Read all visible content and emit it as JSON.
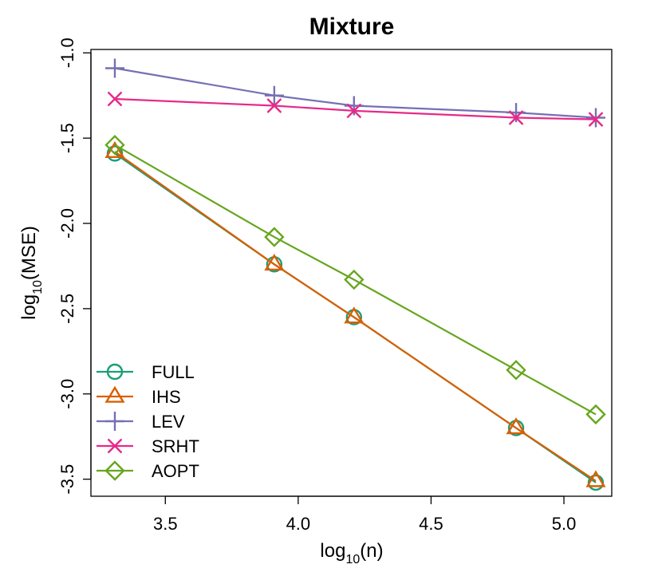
{
  "chart_data": {
    "type": "line",
    "title": "Mixture",
    "xlabel": {
      "base": "log",
      "sub": "10",
      "rest": "(n)"
    },
    "ylabel": {
      "base": "log",
      "sub": "10",
      "rest": "(MSE)"
    },
    "xlim": [
      3.22,
      5.18
    ],
    "ylim": [
      -3.6,
      -0.98
    ],
    "xticks": [
      3.5,
      4.0,
      4.5,
      5.0
    ],
    "xtick_labels": [
      "3.5",
      "4.0",
      "4.5",
      "5.0"
    ],
    "yticks": [
      -3.5,
      -3.0,
      -2.5,
      -2.0,
      -1.5,
      -1.0
    ],
    "ytick_labels": [
      "-3.5",
      "-3.0",
      "-2.5",
      "-2.0",
      "-1.5",
      "-1.0"
    ],
    "grid": false,
    "legend_position": "bottom-left",
    "x": [
      3.31,
      3.91,
      4.21,
      4.82,
      5.12
    ],
    "series": [
      {
        "name": "FULL",
        "color": "#1b9e77",
        "marker": "circle",
        "values": [
          -1.59,
          -2.24,
          -2.55,
          -3.2,
          -3.52
        ]
      },
      {
        "name": "IHS",
        "color": "#d95f02",
        "marker": "triangle",
        "values": [
          -1.58,
          -2.24,
          -2.55,
          -3.2,
          -3.51
        ]
      },
      {
        "name": "LEV",
        "color": "#7570b3",
        "marker": "plus",
        "values": [
          -1.09,
          -1.25,
          -1.31,
          -1.35,
          -1.38
        ]
      },
      {
        "name": "SRHT",
        "color": "#e7298a",
        "marker": "x",
        "values": [
          -1.27,
          -1.31,
          -1.34,
          -1.38,
          -1.39
        ]
      },
      {
        "name": "AOPT",
        "color": "#66a61e",
        "marker": "diamond",
        "values": [
          -1.54,
          -2.08,
          -2.33,
          -2.86,
          -3.12
        ]
      }
    ]
  }
}
